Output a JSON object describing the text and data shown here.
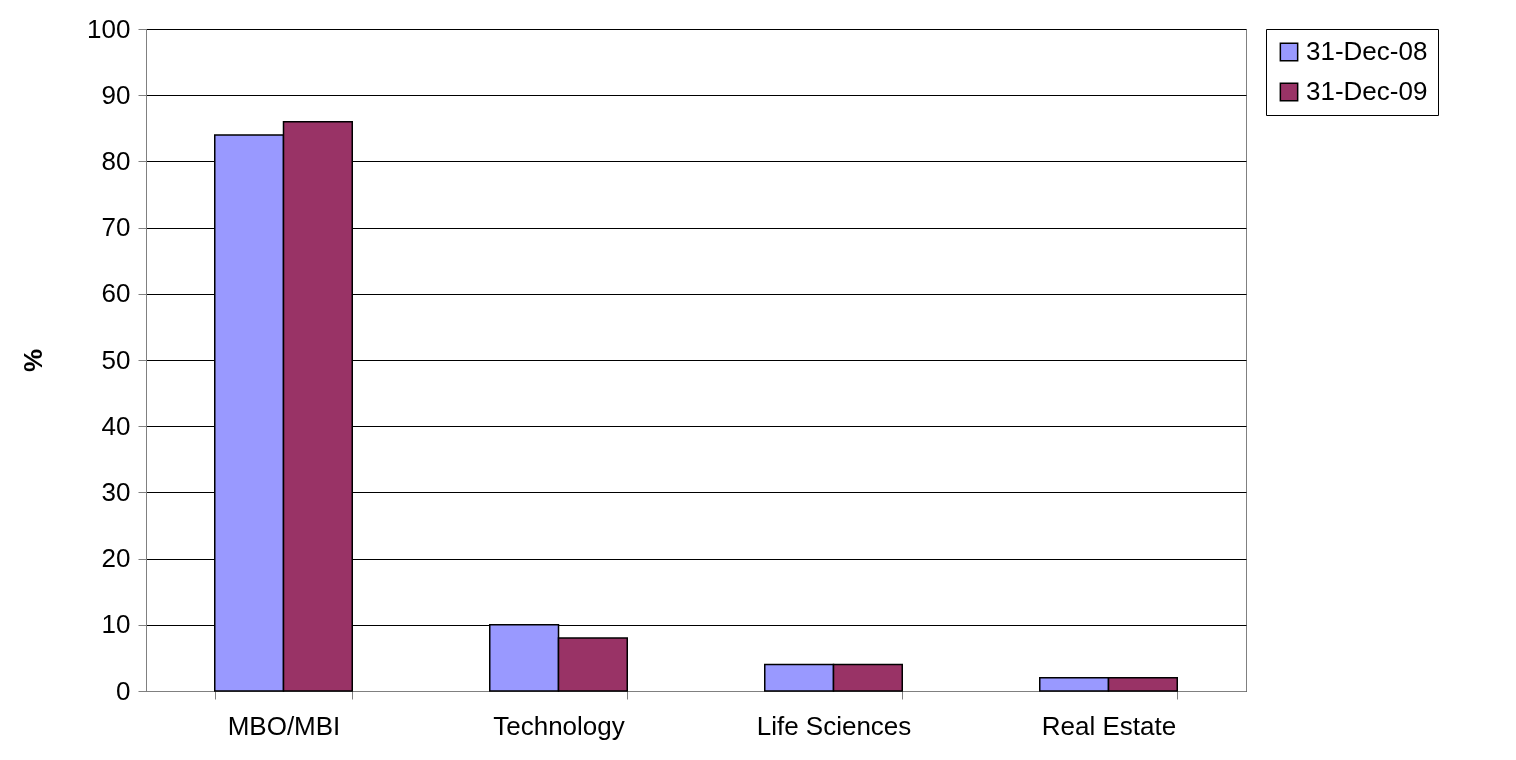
{
  "chart_data": {
    "type": "bar",
    "ylabel": "%",
    "categories": [
      "MBO/MBI",
      "Technology",
      "Life Sciences",
      "Real Estate"
    ],
    "series": [
      {
        "name": "31-Dec-08",
        "color": "#9999ff",
        "values": [
          84,
          10,
          4,
          2
        ]
      },
      {
        "name": "31-Dec-09",
        "color": "#993366",
        "values": [
          86,
          8,
          4,
          2
        ]
      }
    ],
    "ylim": [
      0,
      100
    ],
    "yticks": [
      0,
      10,
      20,
      30,
      40,
      50,
      60,
      70,
      80,
      90,
      100
    ],
    "grid": "y",
    "legend": "right"
  }
}
